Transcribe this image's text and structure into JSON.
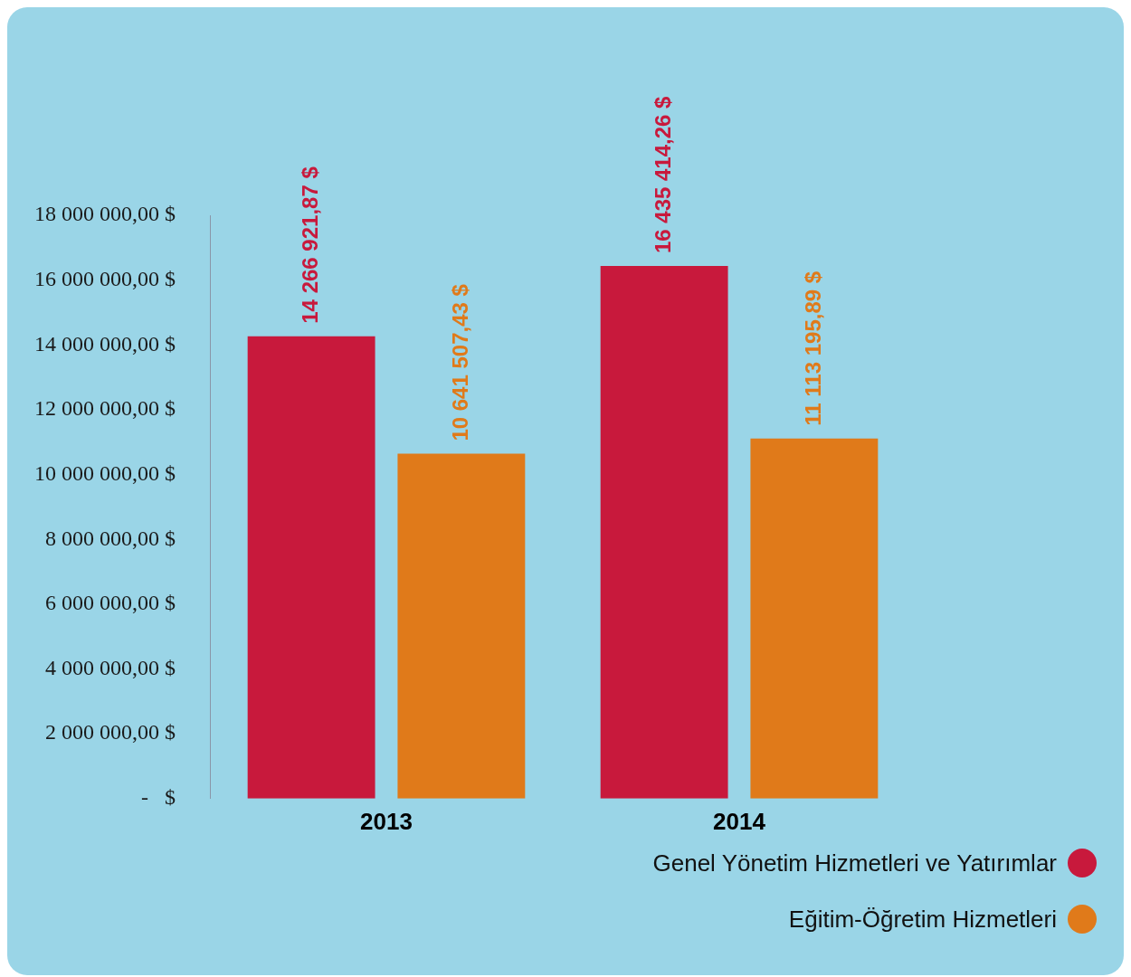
{
  "chart_data": {
    "type": "bar",
    "categories": [
      "2013",
      "2014"
    ],
    "series": [
      {
        "name": "Genel Yönetim Hizmetleri ve Yatırımlar",
        "color": "#c8193c",
        "values": [
          14266921.87,
          16435414.26
        ],
        "value_labels": [
          "14 266 921,87 $",
          "16 435 414,26 $"
        ]
      },
      {
        "name": "Eğitim-Öğretim Hizmetleri",
        "color": "#e07a1a",
        "values": [
          10641507.43,
          11113195.89
        ],
        "value_labels": [
          "10 641 507,43 $",
          "11 113 195,89 $"
        ]
      }
    ],
    "ylim": [
      0,
      18000000
    ],
    "yticks": [
      {
        "value": 0,
        "label": "-   $"
      },
      {
        "value": 2000000,
        "label": "2 000 000,00 $"
      },
      {
        "value": 4000000,
        "label": "4 000 000,00 $"
      },
      {
        "value": 6000000,
        "label": "6 000 000,00 $"
      },
      {
        "value": 8000000,
        "label": "8 000 000,00 $"
      },
      {
        "value": 10000000,
        "label": "10 000 000,00 $"
      },
      {
        "value": 12000000,
        "label": "12 000 000,00 $"
      },
      {
        "value": 14000000,
        "label": "14 000 000,00 $"
      },
      {
        "value": 16000000,
        "label": "16 000 000,00 $"
      },
      {
        "value": 18000000,
        "label": "18 000 000,00 $"
      }
    ],
    "legend": "bottom right"
  }
}
